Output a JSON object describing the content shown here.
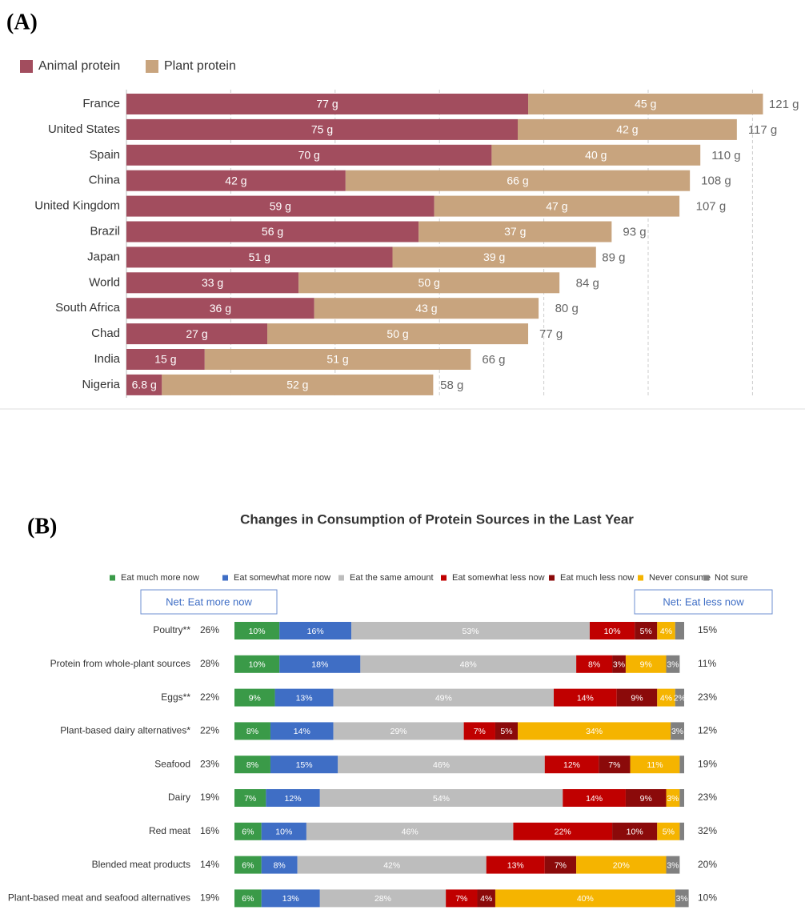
{
  "chart_data": [
    {
      "type": "bar",
      "orientation": "horizontal",
      "stacked": true,
      "panel": "(A)",
      "categories": [
        "France",
        "United States",
        "Spain",
        "China",
        "United Kingdom",
        "Brazil",
        "Japan",
        "World",
        "South Africa",
        "Chad",
        "India",
        "Nigeria"
      ],
      "series": [
        {
          "name": "Animal protein",
          "color": "#a24d5e",
          "values": [
            77,
            75,
            70,
            42,
            59,
            56,
            51,
            33,
            36,
            27,
            15,
            6.8
          ],
          "value_labels": [
            "77 g",
            "75 g",
            "70 g",
            "42 g",
            "59 g",
            "56 g",
            "51 g",
            "33 g",
            "36 g",
            "27 g",
            "15 g",
            "6.8 g"
          ]
        },
        {
          "name": "Plant protein",
          "color": "#c8a47e",
          "values": [
            45,
            42,
            40,
            66,
            47,
            37,
            39,
            50,
            43,
            50,
            51,
            52
          ],
          "value_labels": [
            "45 g",
            "42 g",
            "40 g",
            "66 g",
            "47 g",
            "37 g",
            "39 g",
            "50 g",
            "43 g",
            "50 g",
            "51 g",
            "52 g"
          ]
        }
      ],
      "totals": [
        121,
        117,
        110,
        108,
        107,
        93,
        89,
        84,
        80,
        77,
        66,
        58
      ],
      "total_labels": [
        "121 g",
        "117 g",
        "110 g",
        "108 g",
        "107 g",
        "93 g",
        "89 g",
        "84 g",
        "80 g",
        "77 g",
        "66 g",
        "58 g"
      ],
      "xlim": [
        0,
        130
      ],
      "xticks": [
        20,
        40,
        60,
        80,
        100,
        120
      ],
      "grid": true,
      "legend": "top-left"
    },
    {
      "type": "bar",
      "orientation": "horizontal",
      "stacked": true,
      "panel": "(B)",
      "title": "Changes in Consumption of Protein Sources in the Last Year",
      "net_more_title": "Net: Eat more now",
      "net_less_title": "Net: Eat less now",
      "categories": [
        "Poultry**",
        "Protein from whole-plant sources",
        "Eggs**",
        "Plant-based dairy alternatives*",
        "Seafood",
        "Dairy",
        "Red meat",
        "Blended meat products",
        "Plant-based meat and seafood alternatives"
      ],
      "net_more": [
        26,
        28,
        22,
        22,
        23,
        19,
        16,
        14,
        19
      ],
      "net_more_labels": [
        "26%",
        "28%",
        "22%",
        "22%",
        "23%",
        "19%",
        "16%",
        "14%",
        "19%"
      ],
      "net_less": [
        15,
        11,
        23,
        12,
        19,
        23,
        32,
        20,
        10
      ],
      "net_less_labels": [
        "15%",
        "11%",
        "23%",
        "12%",
        "19%",
        "23%",
        "32%",
        "20%",
        "10%"
      ],
      "series": [
        {
          "name": "Eat much more now",
          "color": "#3a9a48",
          "values": [
            10,
            10,
            9,
            8,
            8,
            7,
            6,
            6,
            6
          ],
          "value_labels": [
            "10%",
            "10%",
            "9%",
            "8%",
            "8%",
            "7%",
            "6%",
            "6%",
            "6%"
          ]
        },
        {
          "name": "Eat somewhat more now",
          "color": "#3f6ec5",
          "values": [
            16,
            18,
            13,
            14,
            15,
            12,
            10,
            8,
            13
          ],
          "value_labels": [
            "16%",
            "18%",
            "13%",
            "14%",
            "15%",
            "12%",
            "10%",
            "8%",
            "13%"
          ]
        },
        {
          "name": "Eat the same amount",
          "color": "#bdbdbd",
          "values": [
            53,
            48,
            49,
            29,
            46,
            54,
            46,
            42,
            28
          ],
          "value_labels": [
            "53%",
            "48%",
            "49%",
            "29%",
            "46%",
            "54%",
            "46%",
            "42%",
            "28%"
          ]
        },
        {
          "name": "Eat somewhat less now",
          "color": "#c00000",
          "values": [
            10,
            8,
            14,
            7,
            12,
            14,
            22,
            13,
            7
          ],
          "value_labels": [
            "10%",
            "8%",
            "14%",
            "7%",
            "12%",
            "14%",
            "22%",
            "13%",
            "7%"
          ]
        },
        {
          "name": "Eat much less now",
          "color": "#8b0a0a",
          "values": [
            5,
            3,
            9,
            5,
            7,
            9,
            10,
            7,
            4
          ],
          "value_labels": [
            "5%",
            "3%",
            "9%",
            "5%",
            "7%",
            "9%",
            "10%",
            "7%",
            "4%"
          ]
        },
        {
          "name": "Never consume",
          "color": "#f5b400",
          "values": [
            4,
            9,
            4,
            34,
            11,
            3,
            5,
            20,
            40
          ],
          "value_labels": [
            "4%",
            "9%",
            "4%",
            "34%",
            "11%",
            "3%",
            "5%",
            "20%",
            "40%"
          ]
        },
        {
          "name": "Not sure",
          "color": "#808080",
          "values": [
            2,
            3,
            2,
            3,
            1,
            1,
            1,
            3,
            3
          ],
          "value_labels": [
            null,
            "3%",
            "2%",
            "3%",
            null,
            null,
            null,
            "3%",
            "3%"
          ]
        }
      ],
      "xlim": [
        0,
        100
      ],
      "legend": "top"
    }
  ]
}
